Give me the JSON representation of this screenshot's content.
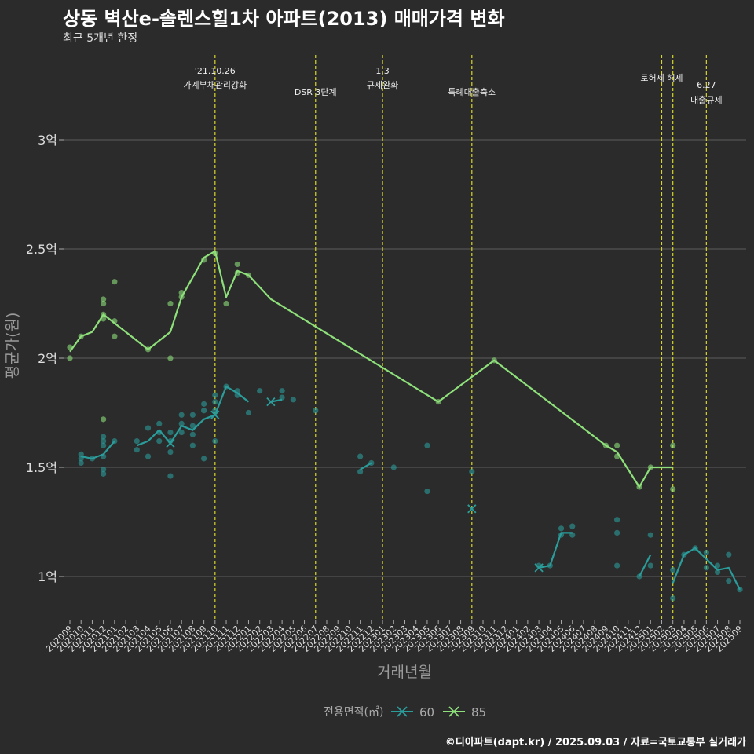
{
  "title": "상동 벽산e-솔렌스힐1차 아파트(2013) 매매가격 변화",
  "subtitle": "최근 5개년 한정",
  "caption": "©디아파트(dapt.kr) / 2025.09.03 / 자료=국토교통부 실거래가",
  "colors": {
    "s60": "#2a9d9b",
    "s85": "#8ee07a",
    "vline": "#d6d62a",
    "grid": "#5e5e5e",
    "bg": "#2b2b2b",
    "text": "#dddddd"
  },
  "chart_data": {
    "type": "line",
    "xlabel": "거래년월",
    "ylabel": "평균가(원)",
    "legend_title": "전용면적(㎡)",
    "legend_position": "bottom",
    "grid": true,
    "ylim": [
      0.8,
      3.3
    ],
    "y_ticks": [
      {
        "v": 1.0,
        "label": "1억"
      },
      {
        "v": 1.5,
        "label": "1.5억"
      },
      {
        "v": 2.0,
        "label": "2억"
      },
      {
        "v": 2.5,
        "label": "2.5억"
      },
      {
        "v": 3.0,
        "label": "3억"
      }
    ],
    "x_months": [
      "202009",
      "202010",
      "202011",
      "202012",
      "202101",
      "202102",
      "202103",
      "202104",
      "202105",
      "202106",
      "202107",
      "202108",
      "202109",
      "202110",
      "202111",
      "202112",
      "202201",
      "202202",
      "202203",
      "202204",
      "202205",
      "202206",
      "202207",
      "202208",
      "202209",
      "202210",
      "202211",
      "202212",
      "202301",
      "202302",
      "202303",
      "202304",
      "202305",
      "202306",
      "202307",
      "202308",
      "202309",
      "202310",
      "202311",
      "202312",
      "202401",
      "202402",
      "202403",
      "202404",
      "202405",
      "202406",
      "202407",
      "202408",
      "202409",
      "202410",
      "202411",
      "202412",
      "202501",
      "202502",
      "202503",
      "202504",
      "202505",
      "202506",
      "202507",
      "202508",
      "202509"
    ],
    "events": [
      {
        "x": "202110",
        "lines": [
          "'21.10.26",
          "가계부채관리강화"
        ],
        "level": 0
      },
      {
        "x": "202207",
        "lines": [
          "DSR 3단계"
        ],
        "level": 2
      },
      {
        "x": "202301",
        "lines": [
          "1.3",
          "규제완화"
        ],
        "level": 0
      },
      {
        "x": "202309",
        "lines": [
          "특례대출축소"
        ],
        "level": 2
      },
      {
        "x": "202502",
        "lines": [
          "토허제 해제"
        ],
        "level": 1
      },
      {
        "x": "202503",
        "lines": [],
        "level": 1
      },
      {
        "x": "202506",
        "lines": [
          "6.27",
          "대출규제"
        ],
        "level": 1
      }
    ],
    "series": [
      {
        "name": "60",
        "color": "#2a9d9b",
        "line": [
          [
            "202010",
            1.55
          ],
          [
            "202011",
            1.54
          ],
          [
            "202012",
            1.56
          ],
          [
            "202101",
            1.62
          ],
          null,
          [
            "202103",
            1.6
          ],
          [
            "202104",
            1.62
          ],
          [
            "202105",
            1.67
          ],
          [
            "202106",
            1.61
          ],
          [
            "202107",
            1.69
          ],
          [
            "202108",
            1.67
          ],
          [
            "202109",
            1.72
          ],
          [
            "202110",
            1.74
          ],
          [
            "202111",
            1.87
          ],
          [
            "202112",
            1.84
          ],
          [
            "202201",
            1.8
          ],
          null,
          [
            "202203",
            1.8
          ],
          [
            "202204",
            1.81
          ],
          null,
          [
            "202211",
            1.49
          ],
          [
            "202212",
            1.52
          ],
          null,
          [
            "202403",
            1.04
          ],
          [
            "202404",
            1.05
          ],
          [
            "202405",
            1.2
          ],
          [
            "202406",
            1.2
          ],
          null,
          [
            "202412",
            1.0
          ],
          [
            "202501",
            1.1
          ],
          null,
          [
            "202503",
            0.97
          ],
          [
            "202504",
            1.1
          ],
          [
            "202505",
            1.13
          ],
          [
            "202506",
            1.08
          ],
          [
            "202507",
            1.03
          ],
          [
            "202508",
            1.04
          ],
          [
            "202509",
            0.94
          ]
        ],
        "points": [
          [
            "202010",
            1.56
          ],
          [
            "202010",
            1.54
          ],
          [
            "202010",
            1.52
          ],
          [
            "202011",
            1.54
          ],
          [
            "202012",
            1.64
          ],
          [
            "202012",
            1.62
          ],
          [
            "202012",
            1.6
          ],
          [
            "202012",
            1.55
          ],
          [
            "202012",
            1.49
          ],
          [
            "202012",
            1.47
          ],
          [
            "202101",
            1.62
          ],
          [
            "202103",
            1.62
          ],
          [
            "202103",
            1.58
          ],
          [
            "202104",
            1.68
          ],
          [
            "202104",
            1.55
          ],
          [
            "202105",
            1.7
          ],
          [
            "202105",
            1.66
          ],
          [
            "202105",
            1.62
          ],
          [
            "202106",
            1.66
          ],
          [
            "202106",
            1.62
          ],
          [
            "202106",
            1.57
          ],
          [
            "202106",
            1.46
          ],
          [
            "202107",
            1.74
          ],
          [
            "202107",
            1.7
          ],
          [
            "202107",
            1.66
          ],
          [
            "202108",
            1.74
          ],
          [
            "202108",
            1.69
          ],
          [
            "202108",
            1.65
          ],
          [
            "202108",
            1.6
          ],
          [
            "202109",
            1.79
          ],
          [
            "202109",
            1.76
          ],
          [
            "202109",
            1.54
          ],
          [
            "202110",
            1.83
          ],
          [
            "202110",
            1.8
          ],
          [
            "202110",
            1.76
          ],
          [
            "202110",
            1.62
          ],
          [
            "202111",
            1.87
          ],
          [
            "202112",
            1.85
          ],
          [
            "202112",
            1.83
          ],
          [
            "202201",
            1.75
          ],
          [
            "202202",
            1.85
          ],
          [
            "202204",
            1.85
          ],
          [
            "202204",
            1.82
          ],
          [
            "202205",
            1.81
          ],
          [
            "202207",
            1.76
          ],
          [
            "202211",
            1.55
          ],
          [
            "202211",
            1.48
          ],
          [
            "202212",
            1.52
          ],
          [
            "202302",
            1.5
          ],
          [
            "202305",
            1.6
          ],
          [
            "202305",
            1.39
          ],
          [
            "202309",
            1.48
          ],
          [
            "202403",
            1.05
          ],
          [
            "202404",
            1.05
          ],
          [
            "202405",
            1.22
          ],
          [
            "202405",
            1.19
          ],
          [
            "202406",
            1.23
          ],
          [
            "202406",
            1.19
          ],
          [
            "202410",
            1.26
          ],
          [
            "202410",
            1.2
          ],
          [
            "202410",
            1.05
          ],
          [
            "202412",
            1.0
          ],
          [
            "202501",
            1.19
          ],
          [
            "202501",
            1.05
          ],
          [
            "202503",
            1.03
          ],
          [
            "202503",
            0.9
          ],
          [
            "202504",
            1.1
          ],
          [
            "202505",
            1.13
          ],
          [
            "202506",
            1.11
          ],
          [
            "202506",
            1.04
          ],
          [
            "202507",
            1.05
          ],
          [
            "202507",
            1.02
          ],
          [
            "202508",
            1.1
          ],
          [
            "202508",
            0.98
          ],
          [
            "202509",
            0.94
          ]
        ],
        "markers": [
          [
            "202106",
            1.61
          ],
          [
            "202110",
            1.74
          ],
          [
            "202203",
            1.8
          ],
          [
            "202309",
            1.31
          ],
          [
            "202403",
            1.04
          ]
        ]
      },
      {
        "name": "85",
        "color": "#8ee07a",
        "line": [
          [
            "202009",
            2.03
          ],
          [
            "202010",
            2.1
          ],
          [
            "202011",
            2.12
          ],
          [
            "202012",
            2.2
          ],
          [
            "202104",
            2.04
          ],
          [
            "202106",
            2.12
          ],
          [
            "202107",
            2.28
          ],
          [
            "202109",
            2.46
          ],
          [
            "202110",
            2.49
          ],
          [
            "202111",
            2.28
          ],
          [
            "202112",
            2.4
          ],
          [
            "202201",
            2.38
          ],
          [
            "202203",
            2.27
          ],
          [
            "202306",
            1.8
          ],
          [
            "202311",
            1.99
          ],
          [
            "202409",
            1.6
          ],
          [
            "202410",
            1.57
          ],
          [
            "202412",
            1.41
          ],
          [
            "202501",
            1.5
          ],
          [
            "202502",
            1.5
          ],
          [
            "202503",
            1.5
          ]
        ],
        "points": [
          [
            "202009",
            2.05
          ],
          [
            "202009",
            2.0
          ],
          [
            "202010",
            2.1
          ],
          [
            "202012",
            2.27
          ],
          [
            "202012",
            2.25
          ],
          [
            "202012",
            2.2
          ],
          [
            "202012",
            2.18
          ],
          [
            "202012",
            1.72
          ],
          [
            "202101",
            2.35
          ],
          [
            "202101",
            2.17
          ],
          [
            "202101",
            2.1
          ],
          [
            "202104",
            2.04
          ],
          [
            "202106",
            2.25
          ],
          [
            "202106",
            2.0
          ],
          [
            "202107",
            2.3
          ],
          [
            "202107",
            2.28
          ],
          [
            "202109",
            2.45
          ],
          [
            "202110",
            2.48
          ],
          [
            "202111",
            2.25
          ],
          [
            "202112",
            2.43
          ],
          [
            "202112",
            2.39
          ],
          [
            "202201",
            2.38
          ],
          [
            "202306",
            1.8
          ],
          [
            "202311",
            1.99
          ],
          [
            "202409",
            1.6
          ],
          [
            "202410",
            1.6
          ],
          [
            "202410",
            1.55
          ],
          [
            "202412",
            1.41
          ],
          [
            "202501",
            1.5
          ],
          [
            "202503",
            1.6
          ],
          [
            "202503",
            1.4
          ]
        ],
        "markers": []
      }
    ]
  }
}
